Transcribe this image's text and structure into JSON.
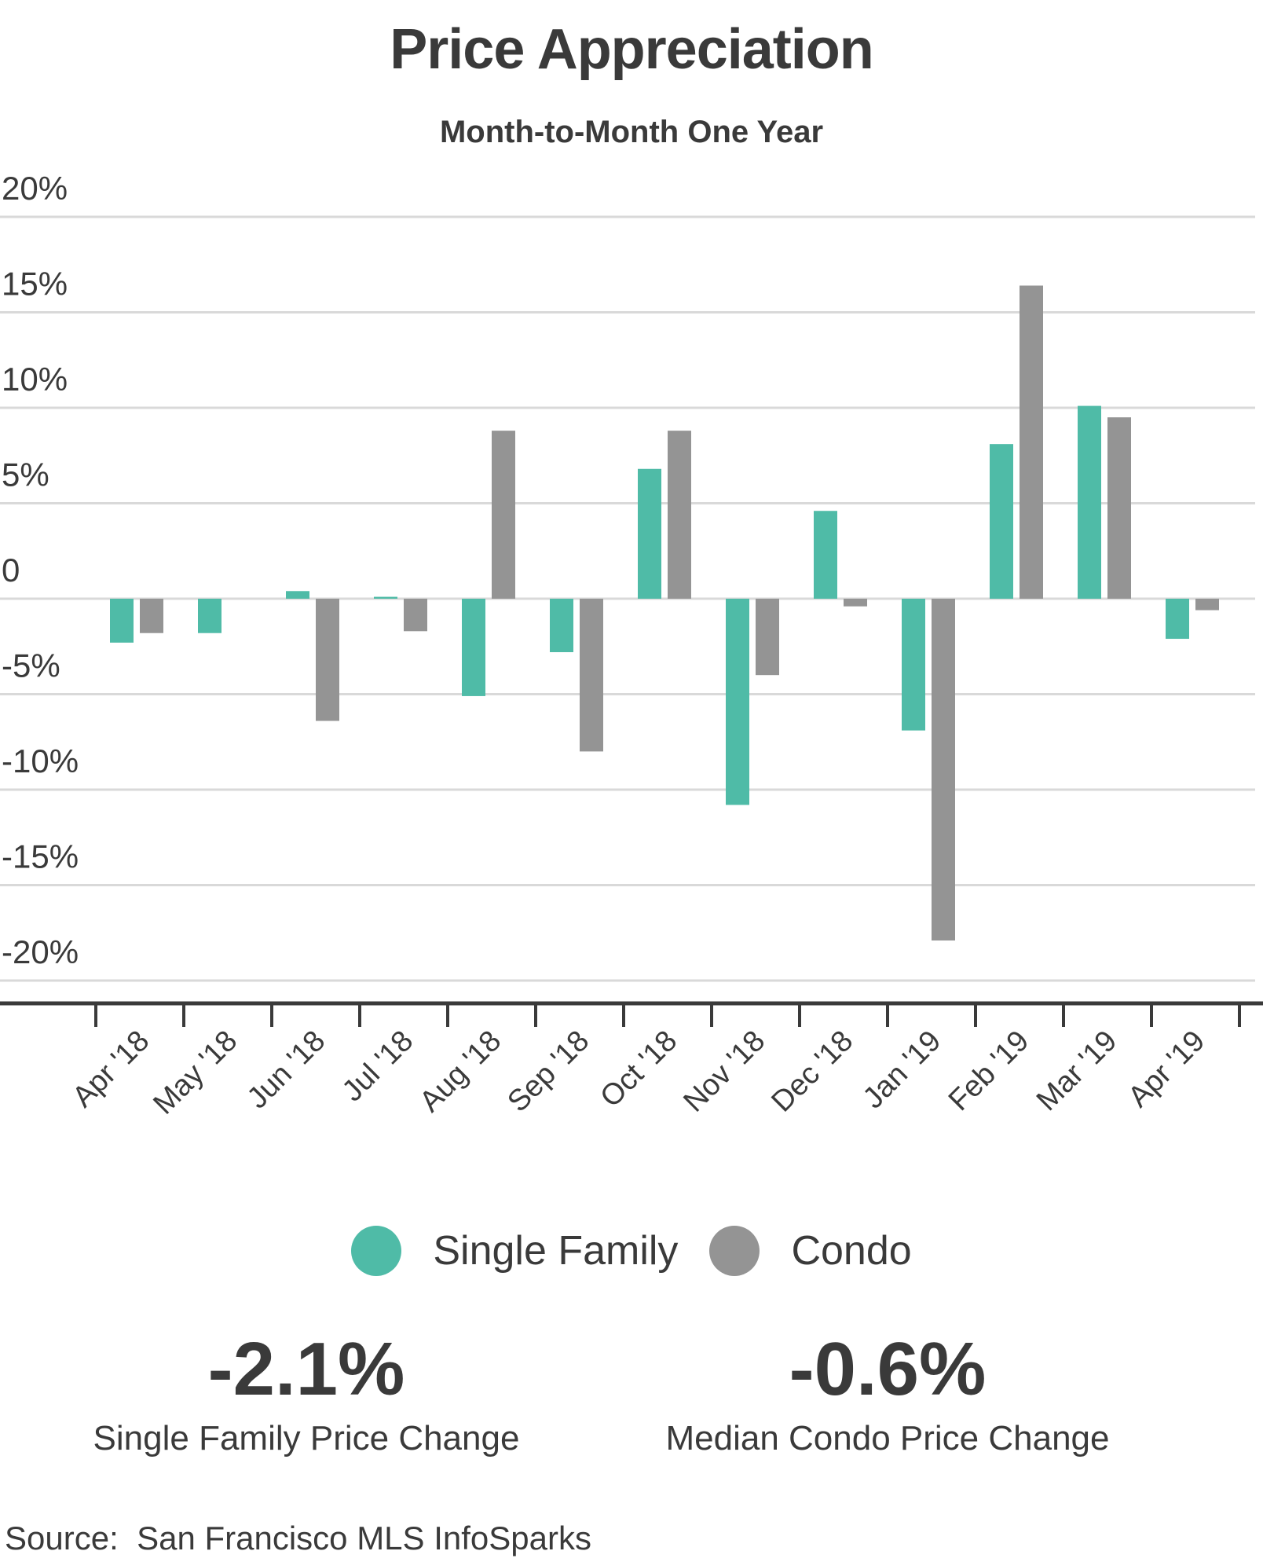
{
  "title": "Price Appreciation",
  "subtitle": "Month-to-Month One Year",
  "chart_data": {
    "type": "bar",
    "categories": [
      "Apr '18",
      "May '18",
      "Jun '18",
      "Jul '18",
      "Aug '18",
      "Sep '18",
      "Oct '18",
      "Nov '18",
      "Dec '18",
      "Jan '19",
      "Feb '19",
      "Mar '19",
      "Apr '19"
    ],
    "series": [
      {
        "name": "Single Family",
        "color": "#4fbba7",
        "values": [
          -2.3,
          -1.8,
          0.4,
          0.1,
          -5.1,
          -2.8,
          6.8,
          -10.8,
          4.6,
          -6.9,
          8.1,
          10.1,
          -2.1
        ]
      },
      {
        "name": "Condo",
        "color": "#949494",
        "values": [
          -1.8,
          null,
          -6.4,
          -1.7,
          8.8,
          -8.0,
          8.8,
          -4.0,
          -0.4,
          -17.9,
          16.4,
          9.5,
          -0.6
        ]
      }
    ],
    "y_ticks": [
      "20%",
      "15%",
      "10%",
      "5%",
      "0",
      "-5%",
      "-10%",
      "-15%",
      "-20%"
    ],
    "ylim": [
      -20,
      20
    ],
    "grid": true,
    "legend": "bottom"
  },
  "legend": [
    {
      "label": "Single Family",
      "color": "#4fbba7"
    },
    {
      "label": "Condo",
      "color": "#949494"
    }
  ],
  "stats": {
    "single_family_value": "-2.1%",
    "single_family_label": "Single Family Price Change",
    "condo_value": "-0.6%",
    "condo_label": "Median Condo Price Change"
  },
  "source": "Source:  San Francisco MLS InfoSparks"
}
